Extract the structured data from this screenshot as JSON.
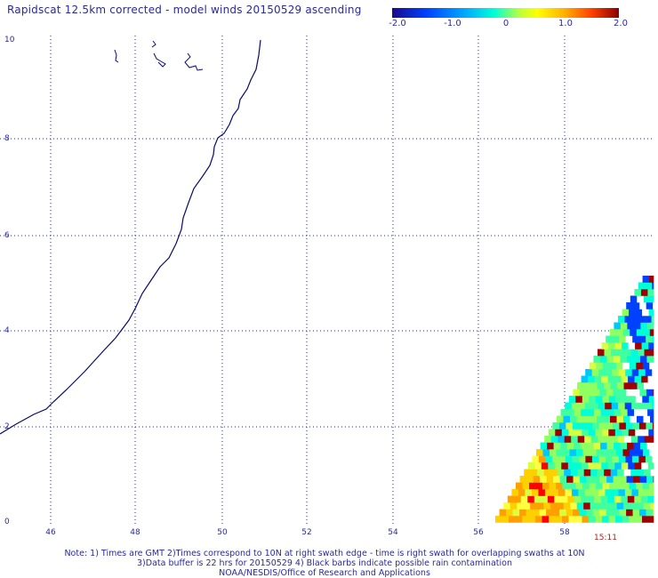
{
  "title": "Rapidscat 12.5km corrected - model winds 20150529 ascending",
  "colorbar": {
    "labels": [
      "-2.0",
      "-1.0",
      "0",
      "1.0",
      "2.0"
    ],
    "colors": [
      "#1a0a8a",
      "#0040ff",
      "#00a8ff",
      "#00ffd8",
      "#b8ff40",
      "#ffff00",
      "#ffb000",
      "#ff4000",
      "#8a0000"
    ]
  },
  "axes": {
    "y_ticks": [
      "10",
      "8",
      "6",
      "4",
      "2",
      "0"
    ],
    "x_ticks": [
      "46",
      "48",
      "50",
      "52",
      "54",
      "56",
      "58"
    ]
  },
  "time_label": "15:11",
  "notes": [
    "Note: 1) Times are GMT 2)Times correspond to 10N at right swath edge - time is right swath for overlapping swaths at 10N",
    "3)Data buffer is 22 hrs for 20150529 4) Black barbs indicate possible rain contamination",
    "NOAA/NESDIS/Office of Research and Applications"
  ]
}
